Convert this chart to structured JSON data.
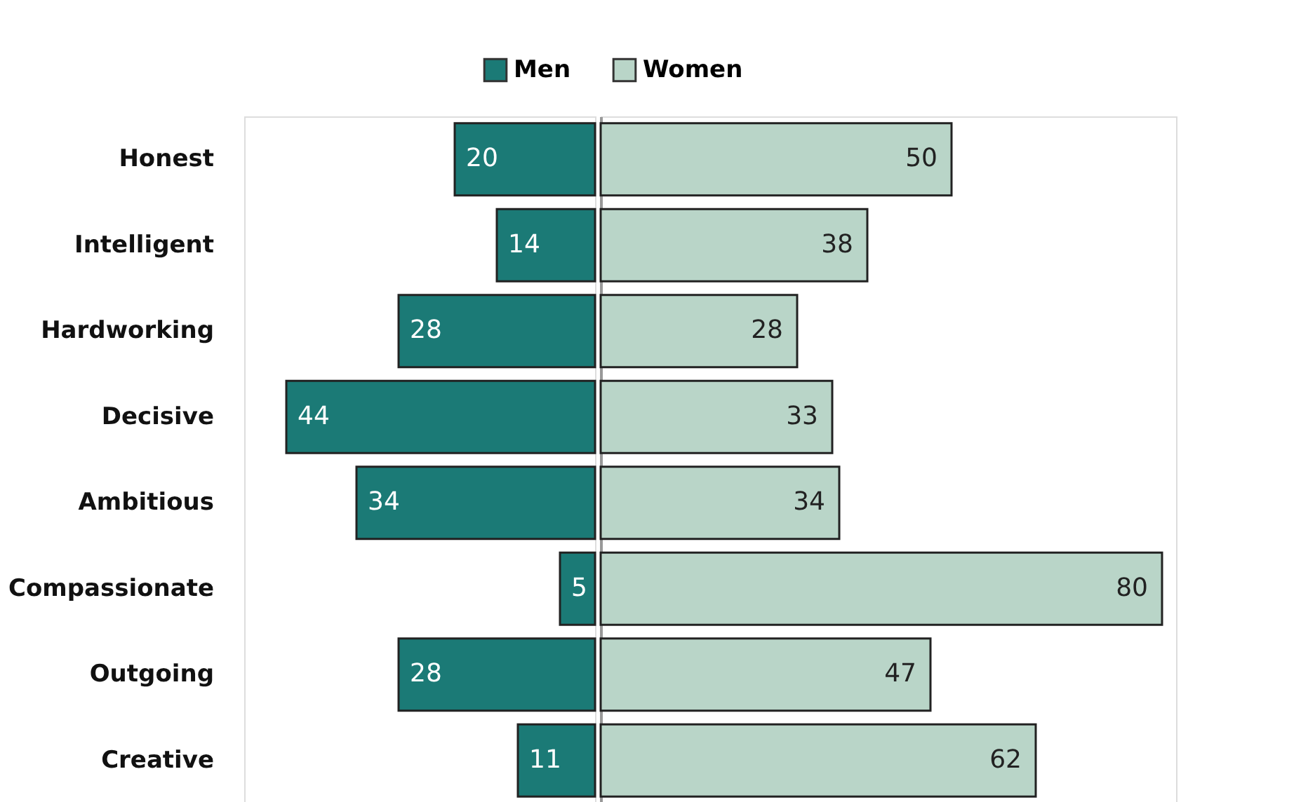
{
  "chart_data": [
    {
      "type": "bar",
      "orientation": "horizontal",
      "categories": [
        "Honest",
        "Intelligent",
        "Hardworking",
        "Decisive",
        "Ambitious",
        "Compassionate",
        "Outgoing",
        "Creative"
      ],
      "series": [
        {
          "name": "Men",
          "color": "#1b7a76",
          "values": [
            20,
            14,
            28,
            44,
            34,
            5,
            28,
            11
          ]
        }
      ],
      "xlim": [
        50,
        0
      ],
      "data_labels": true,
      "legend": "top",
      "tick_labels": "y"
    },
    {
      "type": "bar",
      "orientation": "horizontal",
      "categories": [
        "Honest",
        "Intelligent",
        "Hardworking",
        "Decisive",
        "Ambitious",
        "Compassionate",
        "Outgoing",
        "Creative"
      ],
      "series": [
        {
          "name": "Women",
          "color": "#b9d5c8",
          "values": [
            50,
            38,
            28,
            33,
            34,
            80,
            47,
            62
          ]
        }
      ],
      "xlim": [
        0,
        82
      ],
      "data_labels": true,
      "legend": "top",
      "tick_labels": false
    }
  ]
}
